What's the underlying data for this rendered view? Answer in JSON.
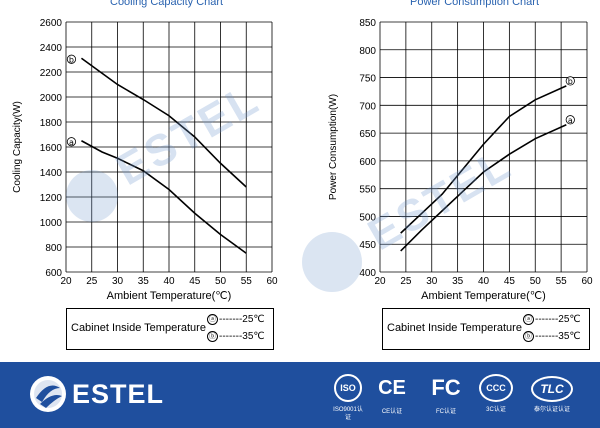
{
  "chart_data": [
    {
      "type": "line",
      "title": "Cooling Capacity Chart",
      "xlabel": "Ambient Temperature(℃)",
      "ylabel": "Cooling  Capacity(W)",
      "xlim": [
        20,
        60
      ],
      "ylim": [
        600,
        2600
      ],
      "xticks": [
        20,
        25,
        30,
        35,
        40,
        45,
        50,
        55,
        60
      ],
      "yticks": [
        600,
        800,
        1000,
        1200,
        1400,
        1600,
        1800,
        2000,
        2200,
        2400,
        2600
      ],
      "grid": true,
      "series": [
        {
          "name": "ⓑ",
          "x": [
            23,
            27,
            30,
            35,
            40,
            45,
            50,
            55
          ],
          "y": [
            2310,
            2190,
            2100,
            1980,
            1850,
            1680,
            1470,
            1280
          ]
        },
        {
          "name": "ⓐ",
          "x": [
            23,
            27,
            30,
            35,
            40,
            45,
            50,
            55
          ],
          "y": [
            1650,
            1560,
            1510,
            1410,
            1260,
            1070,
            900,
            750
          ]
        }
      ]
    },
    {
      "type": "line",
      "title": "Power Consumption Chart",
      "xlabel": "Ambient Temperature(℃)",
      "ylabel": "Power Consumption(W)",
      "xlim": [
        20,
        60
      ],
      "ylim": [
        400,
        850
      ],
      "xticks": [
        20,
        25,
        30,
        35,
        40,
        45,
        50,
        55,
        60
      ],
      "yticks": [
        400,
        450,
        500,
        550,
        600,
        650,
        700,
        750,
        800,
        850
      ],
      "grid": true,
      "series": [
        {
          "name": "ⓑ",
          "x": [
            24,
            28,
            32,
            36,
            40,
            45,
            50,
            56
          ],
          "y": [
            470,
            505,
            540,
            585,
            630,
            680,
            710,
            735
          ]
        },
        {
          "name": "ⓐ",
          "x": [
            24,
            28,
            32,
            36,
            40,
            45,
            50,
            56
          ],
          "y": [
            438,
            475,
            510,
            545,
            580,
            612,
            640,
            665
          ]
        }
      ]
    }
  ],
  "legend": {
    "title": "Cabinet Inside Temperature",
    "entries": [
      {
        "marker": "ⓐ",
        "text": "-------25℃"
      },
      {
        "marker": "ⓑ",
        "text": "-------35℃"
      }
    ]
  },
  "footer": {
    "brand": "ESTEL",
    "watermark": "ESTEL",
    "certs": [
      {
        "glyph": "ISO",
        "caption": "ISO9001认证"
      },
      {
        "glyph": "CE",
        "caption": "CE认证"
      },
      {
        "glyph": "FC",
        "caption": "FC认证"
      },
      {
        "glyph": "CCC",
        "caption": "3C认证"
      },
      {
        "glyph": "TLC",
        "caption": "泰尔认证认证"
      }
    ]
  }
}
